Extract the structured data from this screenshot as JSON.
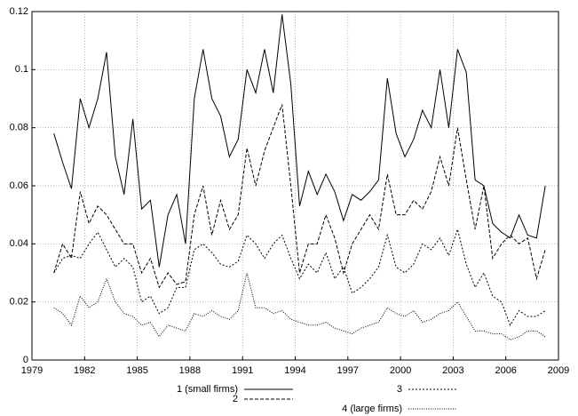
{
  "chart_data": {
    "type": "line",
    "x": [
      1980.25,
      1980.75,
      1981.25,
      1981.75,
      1982.25,
      1982.75,
      1983.25,
      1983.75,
      1984.25,
      1984.75,
      1985.25,
      1985.75,
      1986.25,
      1986.75,
      1987.25,
      1987.75,
      1988.25,
      1988.75,
      1989.25,
      1989.75,
      1990.25,
      1990.75,
      1991.25,
      1991.75,
      1992.25,
      1992.75,
      1993.25,
      1993.75,
      1994.25,
      1994.75,
      1995.25,
      1995.75,
      1996.25,
      1996.75,
      1997.25,
      1997.75,
      1998.25,
      1998.75,
      1999.25,
      1999.75,
      2000.25,
      2000.75,
      2001.25,
      2001.75,
      2002.25,
      2002.75,
      2003.25,
      2003.75,
      2004.25,
      2004.75,
      2005.25,
      2005.75,
      2006.25,
      2006.75,
      2007.25,
      2007.75,
      2008.25
    ],
    "series": [
      {
        "name": "1 (small firms)",
        "color": "#000000",
        "dash": "solid",
        "values": [
          0.078,
          0.068,
          0.059,
          0.09,
          0.08,
          0.09,
          0.106,
          0.07,
          0.057,
          0.083,
          0.052,
          0.055,
          0.032,
          0.05,
          0.057,
          0.04,
          0.09,
          0.107,
          0.09,
          0.084,
          0.07,
          0.076,
          0.1,
          0.092,
          0.107,
          0.092,
          0.119,
          0.095,
          0.053,
          0.065,
          0.057,
          0.064,
          0.058,
          0.048,
          0.057,
          0.055,
          0.058,
          0.062,
          0.097,
          0.078,
          0.07,
          0.076,
          0.086,
          0.08,
          0.1,
          0.08,
          0.107,
          0.099,
          0.062,
          0.06,
          0.047,
          0.044,
          0.042,
          0.05,
          0.043,
          0.042,
          0.06
        ]
      },
      {
        "name": "2",
        "color": "#000000",
        "dash": "dashed",
        "values": [
          0.03,
          0.04,
          0.035,
          0.058,
          0.047,
          0.053,
          0.05,
          0.045,
          0.04,
          0.04,
          0.03,
          0.035,
          0.025,
          0.03,
          0.026,
          0.027,
          0.05,
          0.06,
          0.043,
          0.055,
          0.045,
          0.05,
          0.073,
          0.06,
          0.072,
          0.08,
          0.088,
          0.06,
          0.03,
          0.04,
          0.04,
          0.05,
          0.042,
          0.03,
          0.04,
          0.045,
          0.05,
          0.045,
          0.064,
          0.05,
          0.05,
          0.055,
          0.052,
          0.058,
          0.07,
          0.06,
          0.08,
          0.062,
          0.045,
          0.06,
          0.035,
          0.04,
          0.043,
          0.04,
          0.042,
          0.028,
          0.038
        ]
      },
      {
        "name": "3",
        "color": "#000000",
        "dash": "short-dashed",
        "values": [
          0.03,
          0.035,
          0.036,
          0.035,
          0.04,
          0.044,
          0.038,
          0.032,
          0.035,
          0.032,
          0.02,
          0.022,
          0.016,
          0.018,
          0.025,
          0.025,
          0.038,
          0.04,
          0.037,
          0.033,
          0.032,
          0.034,
          0.043,
          0.04,
          0.035,
          0.04,
          0.043,
          0.035,
          0.028,
          0.033,
          0.03,
          0.037,
          0.028,
          0.032,
          0.023,
          0.025,
          0.028,
          0.032,
          0.043,
          0.032,
          0.03,
          0.033,
          0.04,
          0.038,
          0.042,
          0.036,
          0.045,
          0.033,
          0.025,
          0.03,
          0.022,
          0.02,
          0.012,
          0.017,
          0.015,
          0.015,
          0.017
        ]
      },
      {
        "name": "4 (large firms)",
        "color": "#000000",
        "dash": "dotted",
        "values": [
          0.018,
          0.016,
          0.012,
          0.022,
          0.018,
          0.02,
          0.028,
          0.02,
          0.016,
          0.015,
          0.012,
          0.013,
          0.008,
          0.012,
          0.011,
          0.01,
          0.016,
          0.015,
          0.017,
          0.015,
          0.014,
          0.017,
          0.03,
          0.018,
          0.018,
          0.016,
          0.017,
          0.014,
          0.013,
          0.012,
          0.012,
          0.013,
          0.011,
          0.01,
          0.009,
          0.011,
          0.012,
          0.013,
          0.018,
          0.016,
          0.015,
          0.017,
          0.013,
          0.014,
          0.016,
          0.017,
          0.02,
          0.015,
          0.01,
          0.01,
          0.009,
          0.009,
          0.007,
          0.008,
          0.01,
          0.01,
          0.008
        ]
      }
    ],
    "xlim": [
      1979,
      2009
    ],
    "xticks": [
      1979,
      1982,
      1985,
      1988,
      1991,
      1994,
      1997,
      2000,
      2003,
      2006,
      2009
    ],
    "ylim": [
      0,
      0.12
    ],
    "yticks": [
      0,
      0.02,
      0.04,
      0.06,
      0.08,
      0.1,
      0.12
    ],
    "grid": true,
    "legend": "bottom"
  }
}
